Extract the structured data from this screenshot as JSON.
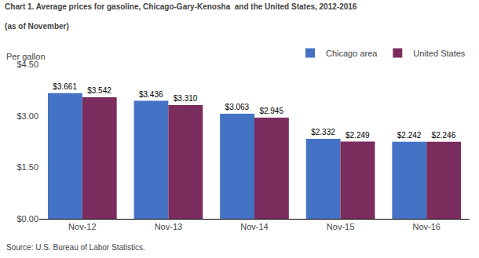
{
  "chart_data": {
    "type": "bar",
    "title": "Chart 1. Average prices for gasoline, Chicago-Gary-Kenosha  and the United States, 2012-2016",
    "subtitle": "(as of November)",
    "ylabel": "Per gallon",
    "annotations": [
      "Source: U.S. Bureau of Labor Statistics."
    ],
    "categories": [
      "Nov-12",
      "Nov-13",
      "Nov-14",
      "Nov-15",
      "Nov-16"
    ],
    "series": [
      {
        "name": "Chicago area",
        "color": "#4472C4",
        "values": [
          3.661,
          3.436,
          3.063,
          2.332,
          2.242
        ],
        "value_labels": [
          "$3.661",
          "$3.436",
          "$3.063",
          "$2.332",
          "$2.242"
        ]
      },
      {
        "name": "United States",
        "color": "#7B2D5E",
        "values": [
          3.542,
          3.31,
          2.945,
          2.249,
          2.246
        ],
        "value_labels": [
          "$3.542",
          "$3.310",
          "$2.945",
          "$2.249",
          "$2.246"
        ]
      }
    ],
    "ylim": [
      0,
      4.5
    ],
    "yticks": [
      {
        "value": 0,
        "label": "$0.00"
      },
      {
        "value": 1.5,
        "label": "$1.50"
      },
      {
        "value": 3,
        "label": "$3.00"
      },
      {
        "value": 4.5,
        "label": "$4.50"
      }
    ],
    "grid": false,
    "legend": "upper right",
    "data_labels": true
  }
}
